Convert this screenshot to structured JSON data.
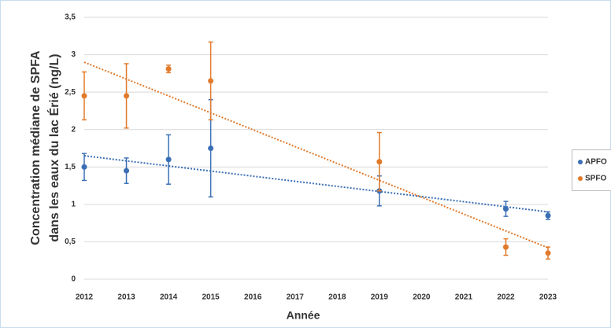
{
  "chart_data": {
    "type": "scatter",
    "xlabel": "Année",
    "ylabel": [
      "Concentration médiane de SPFA",
      "dans les eaux du lac Érié (ng/L)"
    ],
    "x": [
      2012,
      2013,
      2014,
      2015,
      2019,
      2022,
      2023
    ],
    "xlim": [
      2012,
      2023
    ],
    "xticks": [
      2012,
      2013,
      2014,
      2015,
      2016,
      2017,
      2018,
      2019,
      2020,
      2021,
      2022,
      2023
    ],
    "ylim": [
      0,
      3.5
    ],
    "yticks": [
      0,
      {
        "value": 0.5,
        "label": "0,5"
      },
      1,
      {
        "value": 1.5,
        "label": "1,5"
      },
      2,
      {
        "value": 2.5,
        "label": "2,5"
      },
      3,
      {
        "value": 3.5,
        "label": "3,5"
      }
    ],
    "grid": true,
    "legend": "right",
    "series": [
      {
        "name": "APFO",
        "color": "#3b6fb5",
        "values": [
          1.5,
          1.45,
          1.6,
          1.75,
          1.18,
          0.94,
          0.85
        ],
        "errors": [
          0.18,
          0.17,
          0.33,
          0.65,
          0.2,
          0.1,
          0.05
        ],
        "trend": [
          1.65,
          0.9
        ]
      },
      {
        "name": "SPFO",
        "color": "#e17a2b",
        "values": [
          2.45,
          2.45,
          2.81,
          2.65,
          1.57,
          0.43,
          0.35
        ],
        "errors": [
          0.32,
          0.43,
          0.05,
          0.52,
          0.39,
          0.11,
          0.08
        ],
        "trend": [
          2.9,
          0.42
        ]
      }
    ]
  }
}
